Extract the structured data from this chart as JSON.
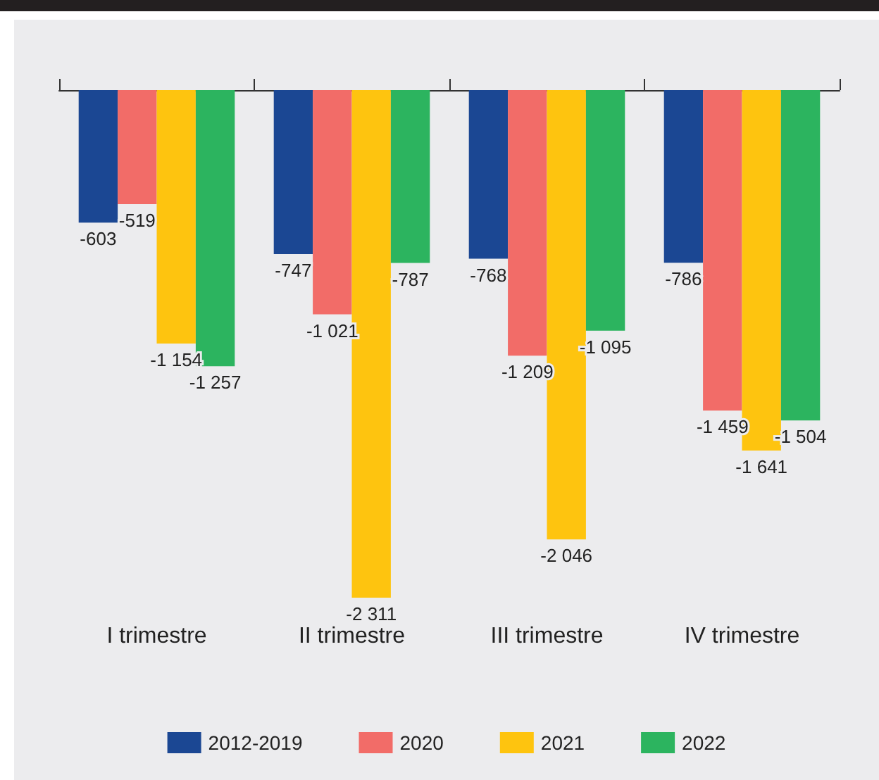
{
  "chart_data": {
    "type": "bar",
    "categories": [
      "I trimestre",
      "II trimestre",
      "III trimestre",
      "IV trimestre"
    ],
    "series": [
      {
        "name": "2012-2019",
        "color": "#1b4793",
        "values": [
          -603,
          -747,
          -768,
          -786
        ],
        "value_labels": [
          "-603",
          "-747",
          "-768",
          "-786"
        ]
      },
      {
        "name": "2020",
        "color": "#f26c68",
        "values": [
          -519,
          -1021,
          -1209,
          -1459
        ],
        "value_labels": [
          "-519",
          "-1 021",
          "-1 209",
          "-1 459"
        ]
      },
      {
        "name": "2021",
        "color": "#fec40f",
        "values": [
          -1154,
          -2311,
          -2046,
          -1641
        ],
        "value_labels": [
          "-1 154",
          "-2 311",
          "-2 046",
          "-1 641"
        ]
      },
      {
        "name": "2022",
        "color": "#2cb45f",
        "values": [
          -1257,
          -787,
          -1095,
          -1504
        ],
        "value_labels": [
          "-1 257",
          "-787",
          "-1 095",
          "-1 504"
        ]
      }
    ],
    "legend": "bottom"
  }
}
